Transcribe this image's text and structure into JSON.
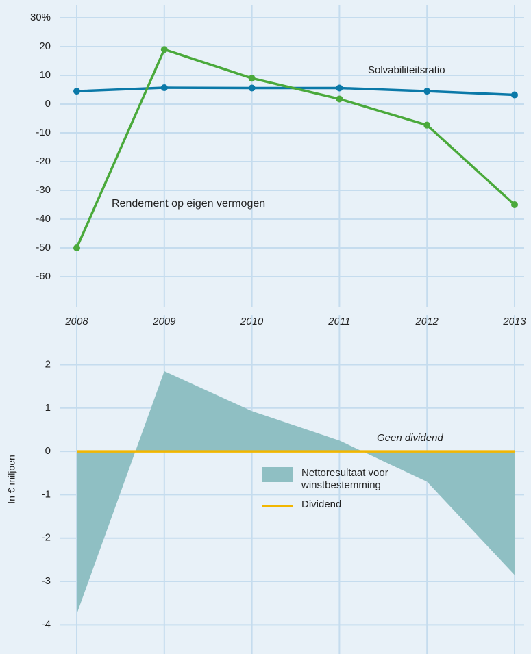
{
  "chart_data": [
    {
      "type": "line",
      "categories": [
        "2008",
        "2009",
        "2010",
        "2011",
        "2012",
        "2013"
      ],
      "ylim": [
        -70,
        30
      ],
      "yticks": [
        {
          "value": 30,
          "label": "30%"
        },
        20,
        10,
        0,
        -10,
        -20,
        -30,
        -40,
        -50,
        -60
      ],
      "grid": true,
      "series": [
        {
          "name": "Solvabiliteitsratio",
          "color": "#0b79a8",
          "values": [
            4.5,
            5.7,
            5.6,
            5.6,
            4.5,
            3.2
          ]
        },
        {
          "name": "Rendement op eigen vermogen",
          "color": "#4aa93b",
          "values": [
            -50,
            19,
            9,
            1.8,
            -7.3,
            -35
          ]
        }
      ]
    },
    {
      "type": "area",
      "ylabel": "In € miljoen",
      "ylim": [
        -4.5,
        3.5
      ],
      "yticks": [
        2,
        1,
        0,
        -1,
        -2,
        -3,
        -4
      ],
      "grid": true,
      "annotation": "Geen dividend",
      "series": [
        {
          "name": "Nettoresultaat voor winstbestemming",
          "type": "area",
          "color": "#8fbfc3",
          "values": [
            -3.75,
            1.85,
            0.93,
            0.25,
            -0.7,
            -2.85
          ]
        },
        {
          "name": "Dividend",
          "type": "line",
          "color": "#f2b600",
          "values": [
            0,
            0,
            0,
            0,
            0,
            0
          ]
        }
      ]
    }
  ]
}
